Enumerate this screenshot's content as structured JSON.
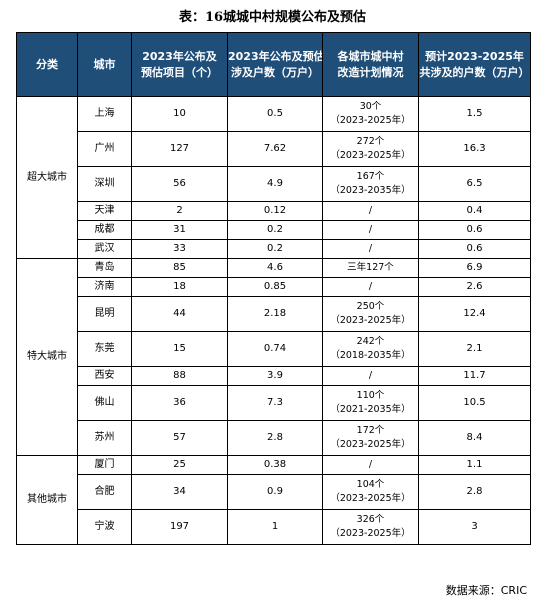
{
  "title": "表：16城城中村规模公布及预估",
  "headers": {
    "category": "分类",
    "city": "城市",
    "projects_line1": "2023年公布及",
    "projects_line2": "预估项目（个）",
    "households_line1": "2023年公布及预估",
    "households_line2": "涉及户数（万户）",
    "plan_line1": "各城市城中村",
    "plan_line2": "改造计划情况",
    "forecast_line1": "预计2023-2025年",
    "forecast_line2": "共涉及的户数（万户）"
  },
  "groups": [
    {
      "name": "超大城市",
      "rows": [
        {
          "city": "上海",
          "projects": "10",
          "households": "0.5",
          "plan1": "30个",
          "plan2": "（2023-2025年）",
          "forecast": "1.5"
        },
        {
          "city": "广州",
          "projects": "127",
          "households": "7.62",
          "plan1": "272个",
          "plan2": "（2023-2025年）",
          "forecast": "16.3"
        },
        {
          "city": "深圳",
          "projects": "56",
          "households": "4.9",
          "plan1": "167个",
          "plan2": "（2023-2035年）",
          "forecast": "6.5"
        },
        {
          "city": "天津",
          "projects": "2",
          "households": "0.12",
          "plan1": "/",
          "plan2": "",
          "forecast": "0.4"
        },
        {
          "city": "成都",
          "projects": "31",
          "households": "0.2",
          "plan1": "/",
          "plan2": "",
          "forecast": "0.6"
        },
        {
          "city": "武汉",
          "projects": "33",
          "households": "0.2",
          "plan1": "/",
          "plan2": "",
          "forecast": "0.6"
        }
      ]
    },
    {
      "name": "特大城市",
      "rows": [
        {
          "city": "青岛",
          "projects": "85",
          "households": "4.6",
          "plan1": "三年127个",
          "plan2": "",
          "forecast": "6.9"
        },
        {
          "city": "济南",
          "projects": "18",
          "households": "0.85",
          "plan1": "/",
          "plan2": "",
          "forecast": "2.6"
        },
        {
          "city": "昆明",
          "projects": "44",
          "households": "2.18",
          "plan1": "250个",
          "plan2": "（2023-2025年）",
          "forecast": "12.4"
        },
        {
          "city": "东莞",
          "projects": "15",
          "households": "0.74",
          "plan1": "242个",
          "plan2": "（2018-2035年）",
          "forecast": "2.1"
        },
        {
          "city": "西安",
          "projects": "88",
          "households": "3.9",
          "plan1": "/",
          "plan2": "",
          "forecast": "11.7"
        },
        {
          "city": "佛山",
          "projects": "36",
          "households": "7.3",
          "plan1": "110个",
          "plan2": "（2021-2035年）",
          "forecast": "10.5"
        },
        {
          "city": "苏州",
          "projects": "57",
          "households": "2.8",
          "plan1": "172个",
          "plan2": "（2023-2025年）",
          "forecast": "8.4"
        }
      ]
    },
    {
      "name": "其他城市",
      "rows": [
        {
          "city": "厦门",
          "projects": "25",
          "households": "0.38",
          "plan1": "/",
          "plan2": "",
          "forecast": "1.1"
        },
        {
          "city": "合肥",
          "projects": "34",
          "households": "0.9",
          "plan1": "104个",
          "plan2": "（2023-2025年）",
          "forecast": "2.8"
        },
        {
          "city": "宁波",
          "projects": "197",
          "households": "1",
          "plan1": "326个",
          "plan2": "（2023-2025年）",
          "forecast": "3"
        }
      ]
    }
  ],
  "source": "数据来源：CRIC",
  "colors": {
    "header_bg": "#1f4e79",
    "header_text": "#ffffff"
  }
}
